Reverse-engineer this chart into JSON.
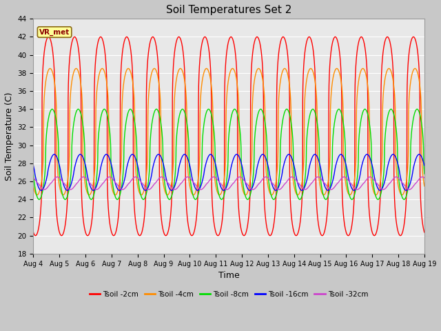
{
  "title": "Soil Temperatures Set 2",
  "xlabel": "Time",
  "ylabel": "Soil Temperature (C)",
  "ylim": [
    18,
    44
  ],
  "yticks": [
    18,
    20,
    22,
    24,
    26,
    28,
    30,
    32,
    34,
    36,
    38,
    40,
    42,
    44
  ],
  "x_tick_labels": [
    "Aug 4",
    "Aug 5",
    "Aug 6",
    "Aug 7",
    "Aug 8",
    "Aug 9",
    "Aug 10",
    "Aug 11",
    "Aug 12",
    "Aug 13",
    "Aug 14",
    "Aug 15",
    "Aug 16",
    "Aug 17",
    "Aug 18",
    "Aug 19"
  ],
  "annotation_text": "VR_met",
  "annotation_bg": "#FFFF99",
  "annotation_border": "#8B6914",
  "series": [
    {
      "label": "Tsoil -2cm",
      "color": "#FF0000",
      "max": 42.0,
      "min": 20.0,
      "period": 1.0,
      "phase": 0.58,
      "sharpness": 4.0
    },
    {
      "label": "Tsoil -4cm",
      "color": "#FF8C00",
      "max": 38.5,
      "min": 24.5,
      "period": 1.0,
      "phase": 0.64,
      "sharpness": 3.0
    },
    {
      "label": "Tsoil -8cm",
      "color": "#00DD00",
      "max": 34.0,
      "min": 24.0,
      "period": 1.0,
      "phase": 0.72,
      "sharpness": 2.0
    },
    {
      "label": "Tsoil -16cm",
      "color": "#0000FF",
      "max": 29.0,
      "min": 25.0,
      "period": 1.0,
      "phase": 0.8,
      "sharpness": 1.2
    },
    {
      "label": "Tsoil -32cm",
      "color": "#CC44CC",
      "max": 26.5,
      "min": 25.1,
      "period": 1.0,
      "phase": 0.92,
      "sharpness": 0.8
    }
  ],
  "fig_bg": "#C8C8C8",
  "plot_bg": "#E8E8E8",
  "grid_color": "#FFFFFF",
  "linewidth": 1.0
}
